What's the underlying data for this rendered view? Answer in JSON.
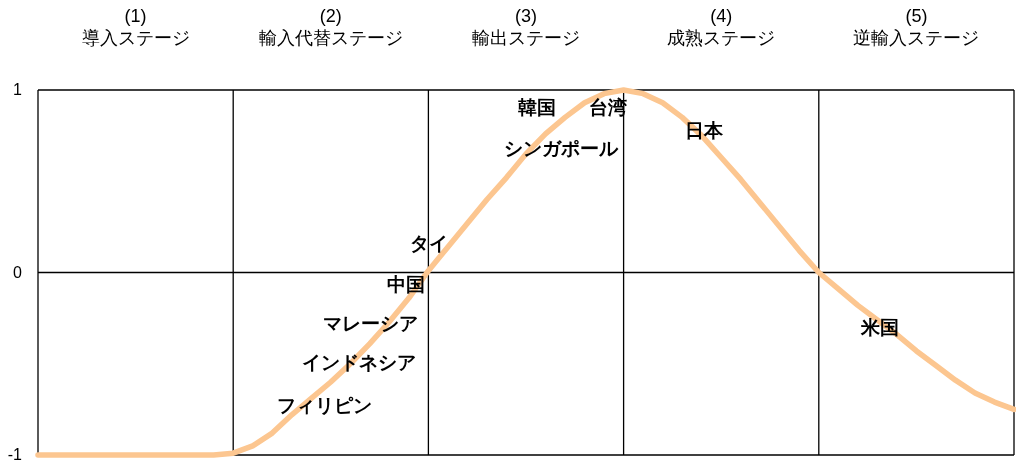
{
  "chart_data": {
    "type": "line",
    "categories": [
      null,
      null,
      null,
      null,
      null,
      null,
      null,
      null,
      null,
      null,
      null,
      null,
      null,
      null,
      null,
      null,
      null,
      null,
      null,
      null,
      null,
      null,
      null,
      null,
      null,
      null,
      null,
      null,
      null,
      null,
      null,
      null,
      null,
      null,
      null,
      null,
      null,
      null,
      null,
      null,
      null,
      null,
      null,
      null,
      null,
      null,
      null,
      null,
      null,
      null,
      null
    ],
    "series": [
      {
        "color": "#fcc690",
        "values": [
          -1,
          -1,
          -1,
          -1,
          -1,
          -1,
          -1,
          -1,
          -1,
          -1,
          -0.99,
          -0.95,
          -0.88,
          -0.78,
          -0.69,
          -0.6,
          -0.5,
          -0.39,
          -0.27,
          -0.14,
          0.01,
          0.14,
          0.27,
          0.4,
          0.52,
          0.65,
          0.76,
          0.85,
          0.93,
          0.98,
          1,
          0.98,
          0.93,
          0.85,
          0.75,
          0.63,
          0.51,
          0.38,
          0.25,
          0.12,
          0,
          -0.09,
          -0.18,
          -0.26,
          -0.34,
          -0.43,
          -0.51,
          -0.59,
          -0.66,
          -0.71,
          -0.75
        ]
      }
    ],
    "ylim": [
      -1,
      1
    ],
    "yticks": [
      -1,
      0,
      1
    ],
    "grid": true,
    "annotations": [
      "(1)\n導入ステージ",
      "(2)\n輸入代替ステージ",
      "(3)\n輸出ステージ",
      "(4)\n成熟ステージ",
      "(5)\n逆輸入ステージ",
      "韓国",
      "台湾",
      "シンガポール",
      "日本",
      "タイ",
      "中国",
      "マレーシア",
      "インドネシア",
      "フィリピン",
      "米国"
    ]
  }
}
